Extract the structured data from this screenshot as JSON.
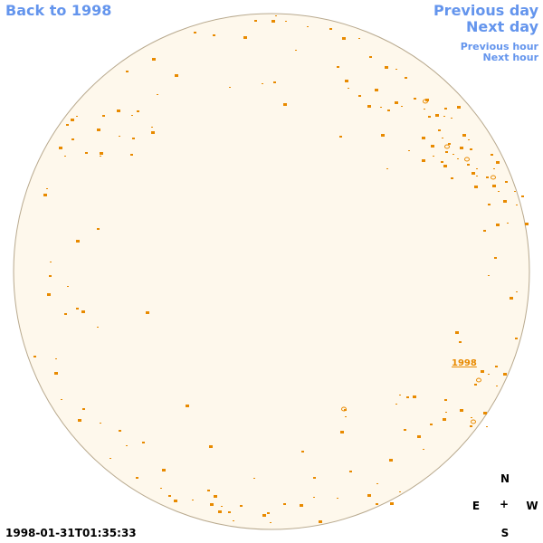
{
  "nav": {
    "back": "Back to 1998",
    "previous_day": "Previous day",
    "next_day": "Next day",
    "previous_hour": "Previous hour",
    "next_hour": "Next hour"
  },
  "map": {
    "disk_fill": "#fef8ec",
    "disk_stroke": "#b8a98e",
    "feature_color": "#e88a00",
    "label": "1998"
  },
  "compass": {
    "n": "N",
    "e": "E",
    "w": "W",
    "s": "S",
    "center": "+"
  },
  "timestamp": "1998-01-31T01:35:33"
}
